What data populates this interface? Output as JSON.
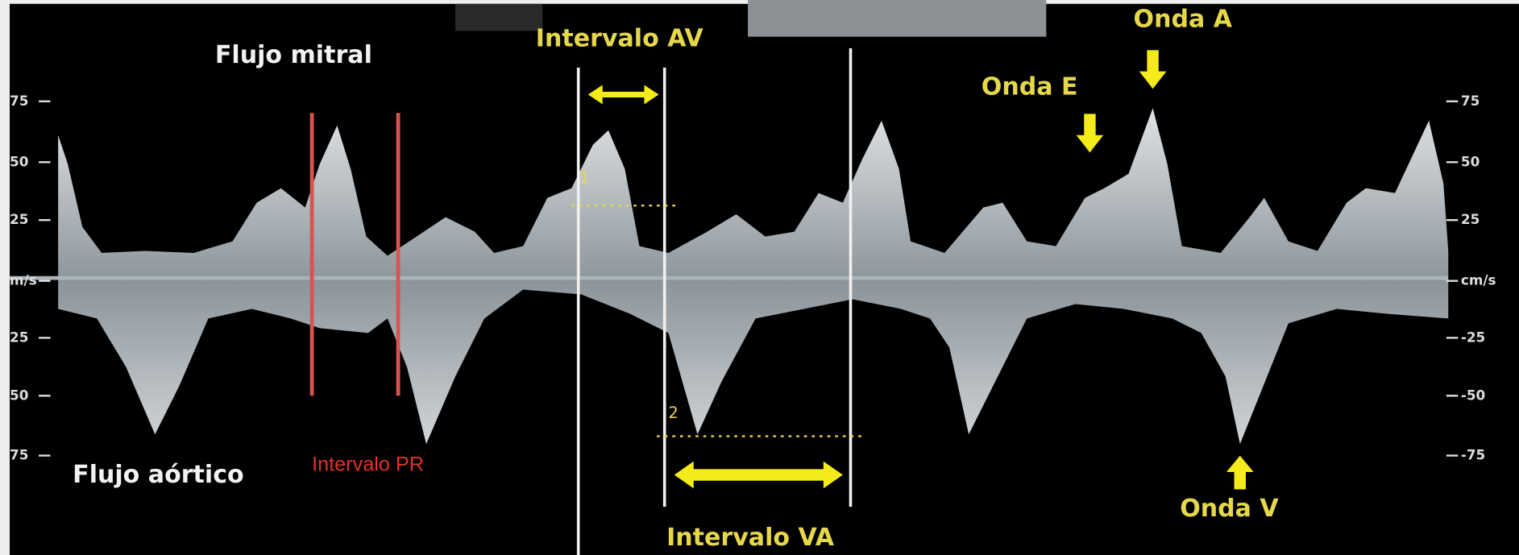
{
  "labels": {
    "mitral": "Flujo mitral",
    "aortic": "Flujo aórtico",
    "pr": "Intervalo PR",
    "av": "Intervalo AV",
    "va": "Intervalo VA",
    "wave_e": "Onda E",
    "wave_a": "Onda A",
    "wave_v": "Onda V"
  },
  "left_axis": [
    "75",
    "50",
    "25",
    "m/s",
    "25",
    "50",
    "75"
  ],
  "right_axis": [
    "75",
    "50",
    "25",
    "cm/s",
    "-25",
    "-50",
    "-75"
  ],
  "markers": [
    "1",
    "2"
  ]
}
